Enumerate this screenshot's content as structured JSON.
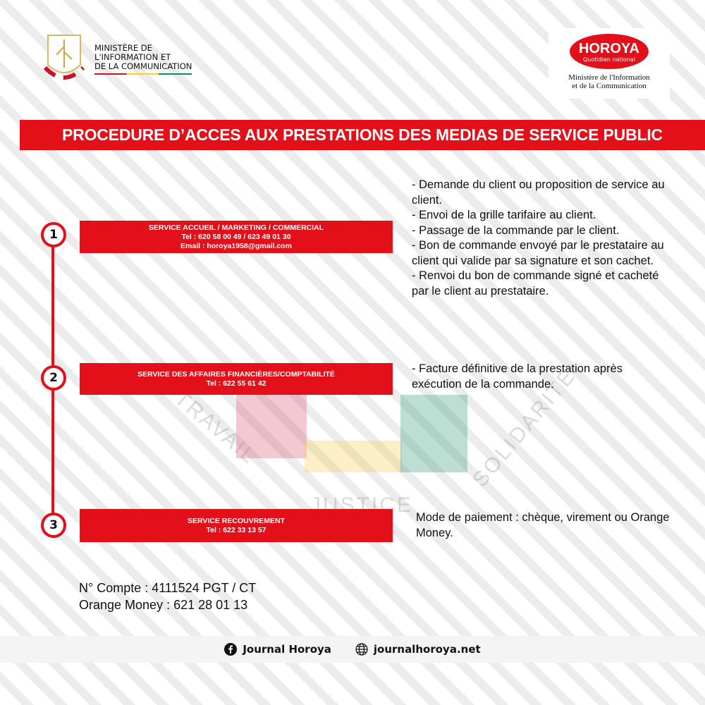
{
  "ministry_logo": {
    "lines": [
      "MINISTÈRE DE",
      "L'INFORMATION ET",
      "DE LA COMMUNICATION"
    ],
    "seal_text": [
      "TRAVAIL",
      "JUSTICE",
      "SOLIDARITÉ"
    ]
  },
  "horoya_logo": {
    "name": "HOROYA",
    "tagline": "Quotidien national",
    "ministry_lines": [
      "Ministère de l'Information",
      "et de la Communication"
    ]
  },
  "title": "PROCEDURE D’ACCES AUX PRESTATIONS DES MEDIAS DE SERVICE PUBLIC",
  "watermark": {
    "left": "TRAVAIL",
    "center": "JUSTICE",
    "right": "SOLIDARITE"
  },
  "steps": [
    {
      "number": "1",
      "lines": [
        "SERVICE ACCUEIL  / MARKETING / COMMERCIAL",
        "Tel : 620 58 00 49 / 623 49 01 30",
        "Email : horoya1958@gmail.com"
      ],
      "description": [
        "- Demande du client ou proposition de service au client.",
        "- Envoi de la grille tarifaire au client.",
        "- Passage de la commande par le client.",
        "- Bon de commande envoyé par le prestataire au client qui valide par sa signature et son cachet.",
        "- Renvoi du bon de commande signé et cacheté par le client au prestataire."
      ]
    },
    {
      "number": "2",
      "lines": [
        "SERVICE DES AFFAIRES FINANCIÈRES/COMPTABILITÉ",
        "Tel : 622 55 61 42"
      ],
      "description": [
        "- Facture définitive  de la prestation après exécution de la commande."
      ]
    },
    {
      "number": "3",
      "lines": [
        "SERVICE RECOUVREMENT",
        "Tel : 622 33 13 57"
      ],
      "description": [
        "Mode de paiement : chèque, virement ou Orange Money."
      ]
    }
  ],
  "account": {
    "compte": "N° Compte : 4111524 PGT / CT",
    "orange_money": "Orange Money : 621 28 01 13"
  },
  "footer": {
    "facebook": "Journal Horoya",
    "facebook_icon": "facebook-icon",
    "website": "journalhoroya.net",
    "website_icon": "globe-icon"
  },
  "colors": {
    "accent": "#e3101a",
    "guinea_red": "#ce1126",
    "guinea_yellow": "#fcd116",
    "guinea_green": "#009460"
  }
}
